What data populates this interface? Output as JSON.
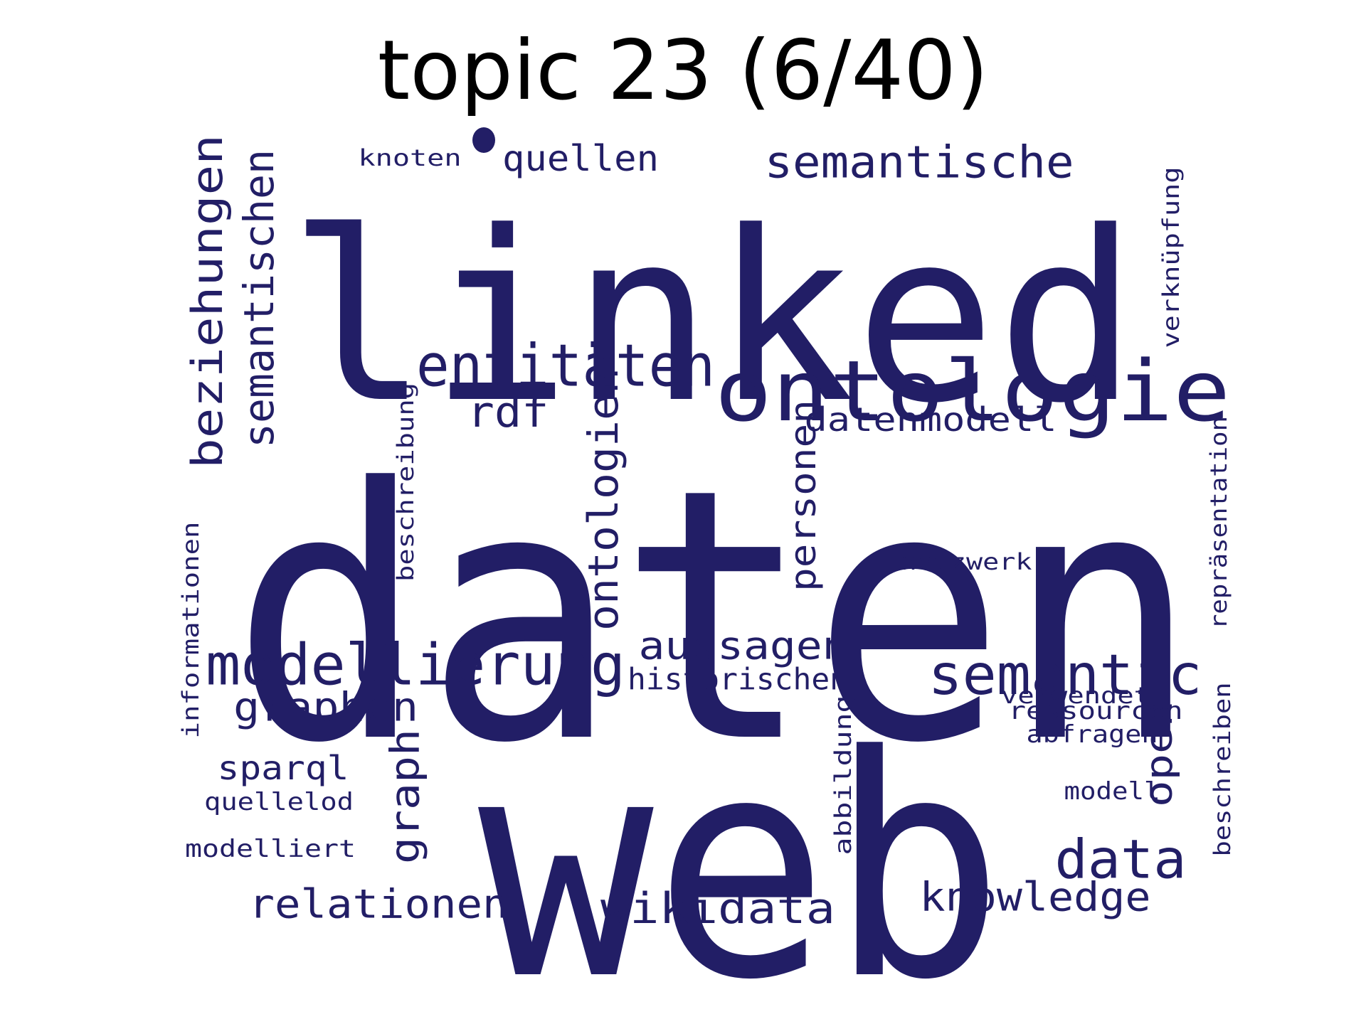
{
  "title": "topic 23 (6/40)",
  "word_color": "#221e66",
  "words": [
    {
      "text": "daten",
      "weight": 1.0
    },
    {
      "text": "linked",
      "weight": 0.78
    },
    {
      "text": "web",
      "weight": 0.85
    },
    {
      "text": "ontologie",
      "weight": 0.33
    },
    {
      "text": "entitäten",
      "weight": 0.24
    },
    {
      "text": "semantic",
      "weight": 0.23
    },
    {
      "text": "modellierung",
      "weight": 0.24
    },
    {
      "text": "data",
      "weight": 0.22
    },
    {
      "text": "semantische",
      "weight": 0.17
    },
    {
      "text": "beziehungen",
      "weight": 0.18
    },
    {
      "text": "semantischen",
      "weight": 0.17
    },
    {
      "text": "ontologien",
      "weight": 0.17
    },
    {
      "text": "rdf",
      "weight": 0.16
    },
    {
      "text": "wikidata",
      "weight": 0.16
    },
    {
      "text": "aussagen",
      "weight": 0.14
    },
    {
      "text": "graphen",
      "weight": 0.15
    },
    {
      "text": "knowledge",
      "weight": 0.15
    },
    {
      "text": "relationen",
      "weight": 0.15
    },
    {
      "text": "graph",
      "weight": 0.15
    },
    {
      "text": "open",
      "weight": 0.14
    },
    {
      "text": "personen",
      "weight": 0.13
    },
    {
      "text": "quellen",
      "weight": 0.13
    },
    {
      "text": "datenmodell",
      "weight": 0.12
    },
    {
      "text": "sparql",
      "weight": 0.12
    },
    {
      "text": "historischen",
      "weight": 0.11
    },
    {
      "text": "verknüpfung",
      "weight": 0.09
    },
    {
      "text": "repräsentation",
      "weight": 0.09
    },
    {
      "text": "beschreibung",
      "weight": 0.09
    },
    {
      "text": "informationen",
      "weight": 0.09
    },
    {
      "text": "abbildung",
      "weight": 0.09
    },
    {
      "text": "beschreiben",
      "weight": 0.09
    },
    {
      "text": "netzwerk",
      "weight": 0.09
    },
    {
      "text": "knoten",
      "weight": 0.08
    },
    {
      "text": "quellelod",
      "weight": 0.08
    },
    {
      "text": "modelliert",
      "weight": 0.08
    },
    {
      "text": "verwendet",
      "weight": 0.08
    },
    {
      "text": "ressourcen",
      "weight": 0.08
    },
    {
      "text": "abfragen",
      "weight": 0.08
    },
    {
      "text": "modell",
      "weight": 0.08
    }
  ]
}
